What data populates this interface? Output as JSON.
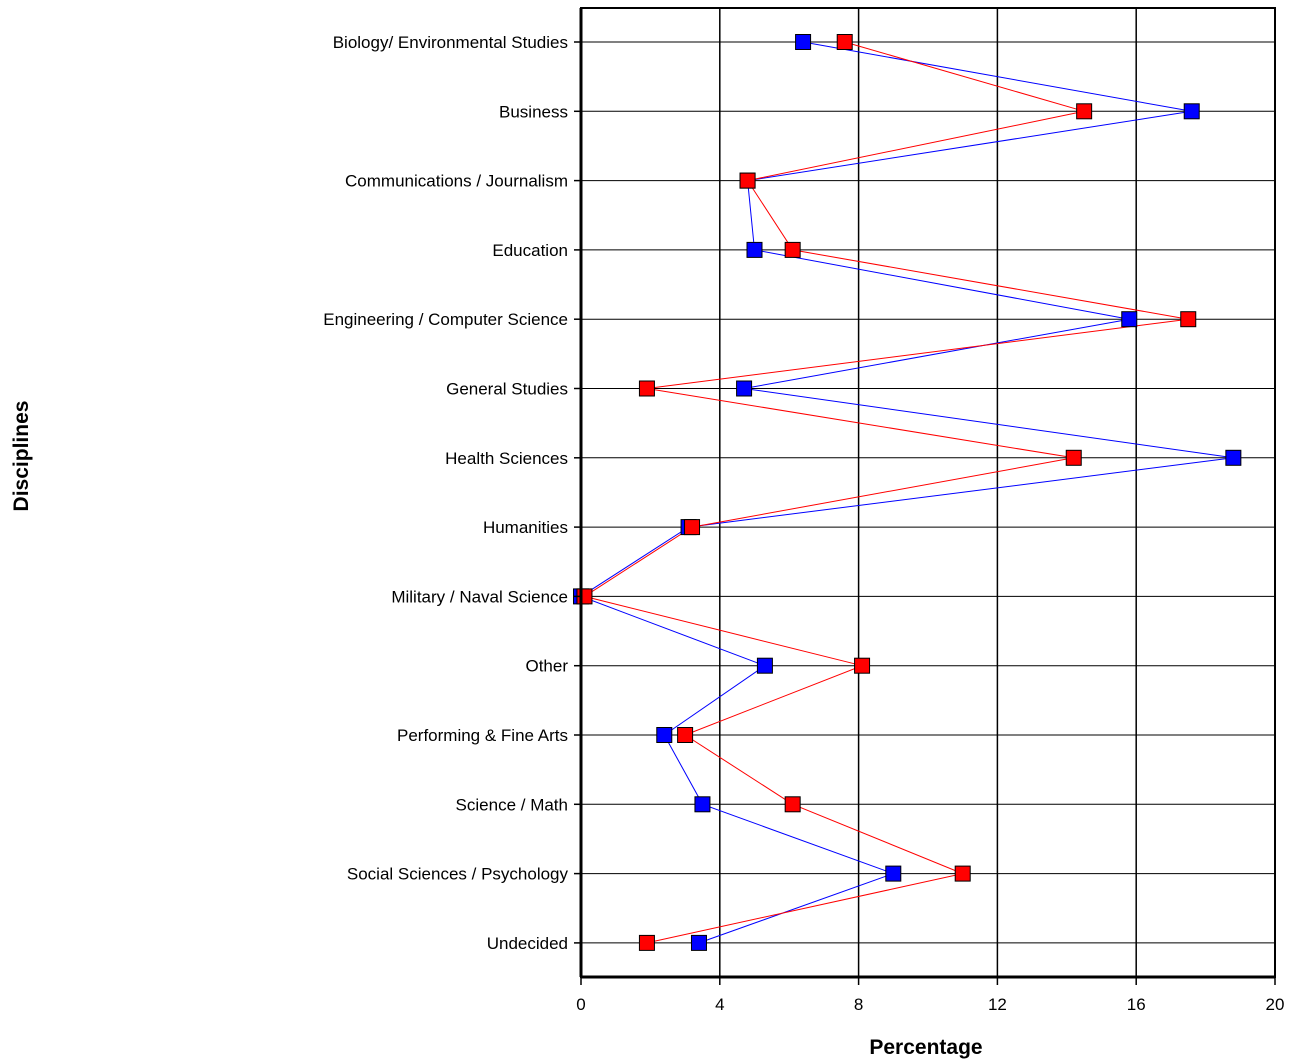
{
  "chart_data": {
    "type": "line",
    "orientation": "horizontal",
    "title": "",
    "xlabel": "Percentage",
    "ylabel": "Disciplines",
    "xlim": [
      0,
      20
    ],
    "x_ticks": [
      "0",
      "4",
      "8",
      "12",
      "16",
      "20"
    ],
    "grid": true,
    "categories": [
      "Biology/ Environmental Studies",
      "Business",
      "Communications / Journalism",
      "Education",
      "Engineering / Computer Science",
      "General Studies",
      "Health Sciences",
      "Humanities",
      "Military / Naval Science",
      "Other",
      "Performing & Fine Arts",
      "Science / Math",
      "Social Sciences / Psychology",
      "Undecided"
    ],
    "series": [
      {
        "color": "#0000ff",
        "values": [
          6.4,
          17.6,
          4.8,
          5.0,
          15.8,
          4.7,
          18.8,
          3.1,
          0.0,
          5.3,
          2.4,
          3.5,
          9.0,
          3.4
        ]
      },
      {
        "color": "#ff0000",
        "values": [
          7.6,
          14.5,
          4.8,
          6.1,
          17.5,
          1.9,
          14.2,
          3.2,
          0.1,
          8.1,
          3.0,
          6.1,
          11.0,
          1.9
        ]
      }
    ]
  }
}
